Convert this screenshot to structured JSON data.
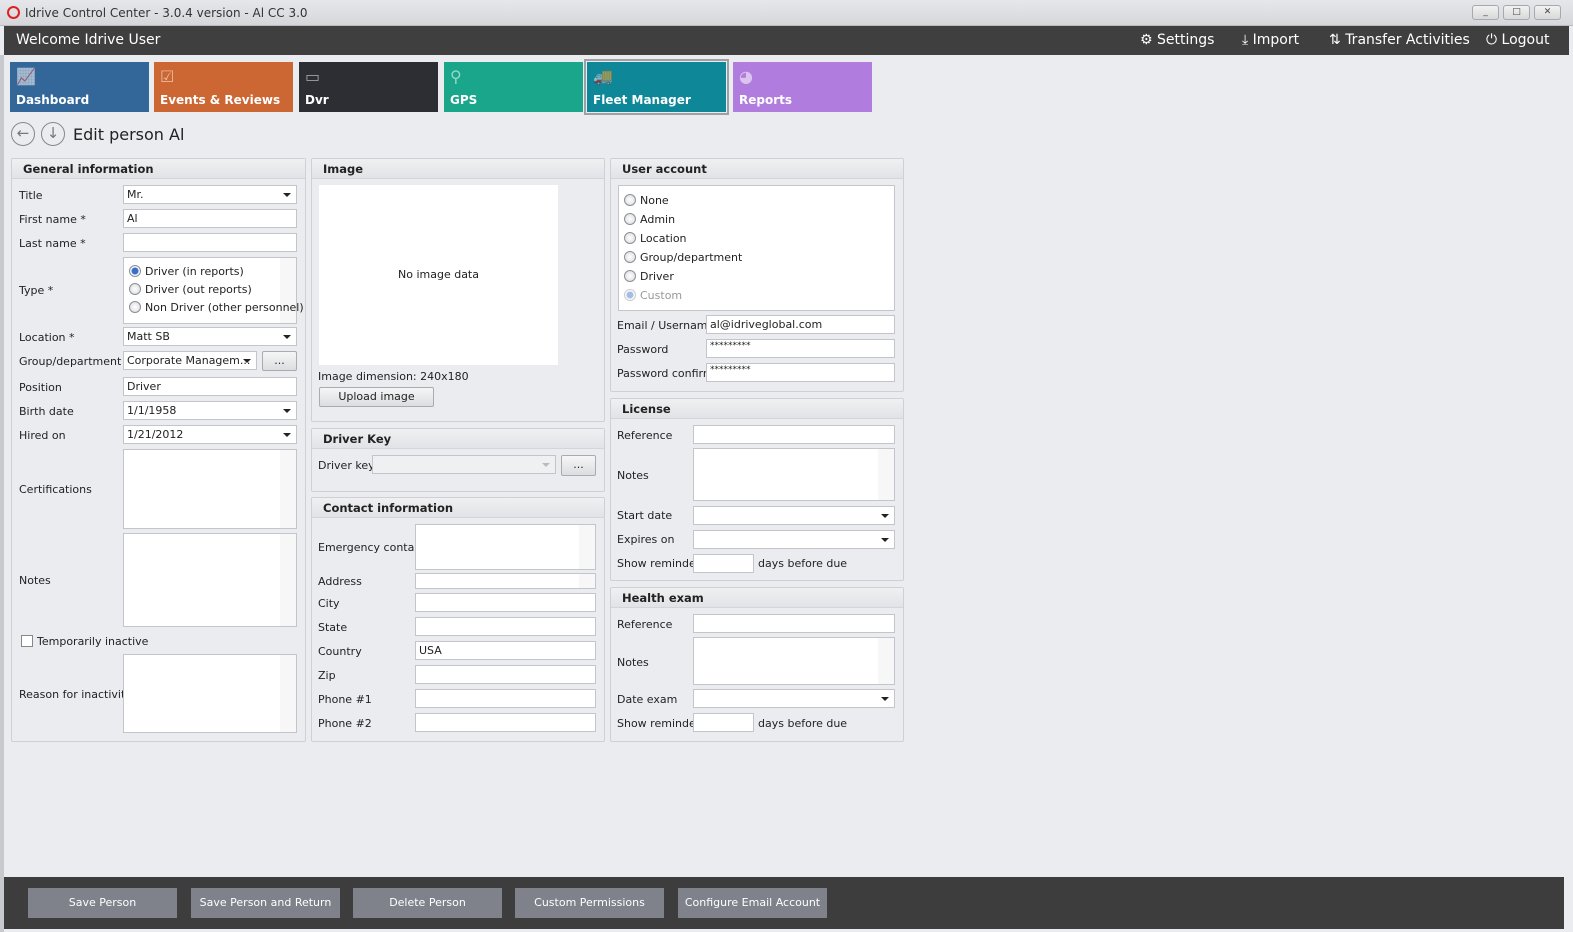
{
  "window": {
    "title": "Idrive Control Center - 3.0.4 version - Al CC 3.0",
    "min": "_",
    "max": "□",
    "close": "✕"
  },
  "header": {
    "welcome": "Welcome Idrive User",
    "settings": "Settings",
    "import": "Import",
    "transfer": "Transfer Activities",
    "logout": "Logout"
  },
  "tiles": [
    {
      "label": "Dashboard",
      "color": "#336699"
    },
    {
      "label": "Events & Reviews",
      "color": "#cc6633"
    },
    {
      "label": "Dvr",
      "color": "#2c2e33"
    },
    {
      "label": "GPS",
      "color": "#19a68a"
    },
    {
      "label": "Fleet Manager",
      "color": "#0e8799",
      "active": true
    },
    {
      "label": "Reports",
      "color": "#b07ddf"
    }
  ],
  "page": {
    "title": "Edit person Al"
  },
  "general": {
    "heading": "General information",
    "title_label": "Title",
    "title_value": "Mr.",
    "first_label": "First name *",
    "first_value": "Al",
    "last_label": "Last name *",
    "last_value": "",
    "type_label": "Type *",
    "type_options": [
      "Driver (in reports)",
      "Driver (out reports)",
      "Non Driver (other personnel)"
    ],
    "type_selected": 0,
    "location_label": "Location *",
    "location_value": "Matt SB",
    "group_label": "Group/department",
    "group_value": "Corporate Managem...",
    "group_btn": "...",
    "position_label": "Position",
    "position_value": "Driver",
    "birth_label": "Birth date",
    "birth_value": "1/1/1958",
    "hired_label": "Hired on",
    "hired_value": "1/21/2012",
    "cert_label": "Certifications",
    "notes_label": "Notes",
    "inactive_label": "Temporarily inactive",
    "inactive_checked": false,
    "reason_label": "Reason for inactivity"
  },
  "image": {
    "heading": "Image",
    "placeholder": "No image data",
    "dimension_label": "Image dimension:",
    "dimension_value": "240x180",
    "upload": "Upload image"
  },
  "driver_key": {
    "heading": "Driver Key",
    "label": "Driver key",
    "btn": "..."
  },
  "contact": {
    "heading": "Contact information",
    "emergency": "Emergency contact",
    "address": "Address",
    "city": "City",
    "state": "State",
    "country": "Country",
    "country_value": "USA",
    "zip": "Zip",
    "phone1": "Phone #1",
    "phone2": "Phone #2"
  },
  "account": {
    "heading": "User account",
    "options": [
      "None",
      "Admin",
      "Location",
      "Group/department",
      "Driver",
      "Custom"
    ],
    "selected": 5,
    "email_label": "Email / Username",
    "email_value": "al@idriveglobal.com",
    "password_label": "Password",
    "password_value": "*********",
    "confirm_label": "Password confirm",
    "confirm_value": "*********"
  },
  "license": {
    "heading": "License",
    "reference": "Reference",
    "notes": "Notes",
    "start": "Start date",
    "expires": "Expires on",
    "reminder": "Show reminder",
    "days": "days before due"
  },
  "health": {
    "heading": "Health exam",
    "reference": "Reference",
    "notes": "Notes",
    "date": "Date exam",
    "reminder": "Show reminder",
    "days": "days before due"
  },
  "actions": [
    "Save Person",
    "Save Person and Return",
    "Delete Person",
    "Custom Permissions",
    "Configure Email Account"
  ]
}
